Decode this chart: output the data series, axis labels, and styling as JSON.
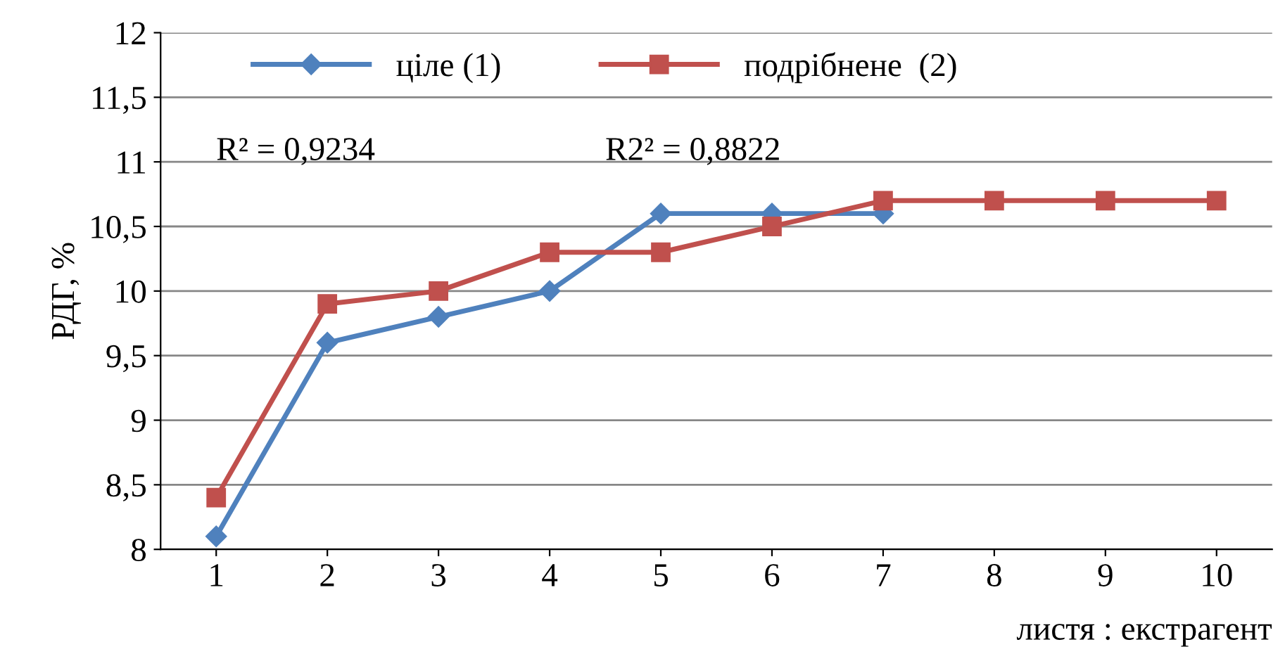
{
  "chart_data": {
    "type": "line",
    "xlabel": "листя : екстрагент",
    "ylabel": "РДГ, %",
    "categories": [
      "1",
      "2",
      "3",
      "4",
      "5",
      "6",
      "7",
      "8",
      "9",
      "10"
    ],
    "series": [
      {
        "name": "ціле (1)",
        "color": "#4f81bd",
        "marker": "diamond",
        "values": [
          8.1,
          9.6,
          9.8,
          10.0,
          10.6,
          10.6,
          10.6,
          null,
          null,
          null
        ]
      },
      {
        "name": "подрібнене  (2)",
        "color": "#c0504d",
        "marker": "square",
        "values": [
          8.4,
          9.9,
          10.0,
          10.3,
          10.3,
          10.5,
          10.7,
          10.7,
          10.7,
          10.7
        ]
      }
    ],
    "ylim": [
      8,
      12
    ],
    "yticks": [
      8,
      {
        "value": 8.5,
        "label": "8,5"
      },
      9,
      {
        "value": 9.5,
        "label": "9,5"
      },
      10,
      {
        "value": 10.5,
        "label": "10,5"
      },
      11,
      {
        "value": 11.5,
        "label": "11,5"
      },
      12
    ],
    "grid": "y",
    "legend": "top",
    "annotations": [
      "R² = 0,9234",
      "R2² = 0,8822"
    ]
  }
}
